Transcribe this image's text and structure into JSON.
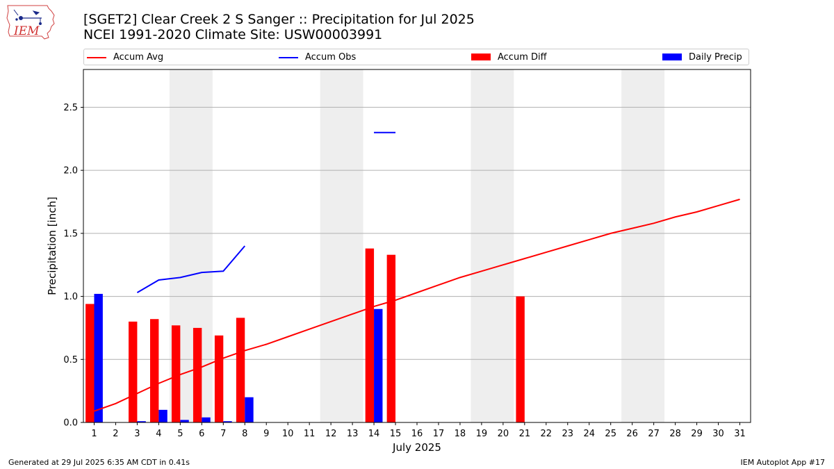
{
  "header": {
    "title_line1": "[SGET2] Clear Creek 2 S Sanger :: Precipitation for Jul 2025",
    "title_line2": "NCEI 1991-2020 Climate Site: USW00003991"
  },
  "logo": {
    "text": "IEM"
  },
  "footer": {
    "left": "Generated at 29 Jul 2025 6:35 AM CDT in 0.41s",
    "right": "IEM Autoplot App #17"
  },
  "legend": {
    "accum_avg": "Accum Avg",
    "accum_obs": "Accum Obs",
    "accum_diff": "Accum Diff",
    "daily_precip": "Daily Precip"
  },
  "colors": {
    "accum_avg": "#ff0000",
    "accum_obs": "#0000ff",
    "accum_diff": "#ff0000",
    "daily_precip": "#0000ff",
    "weekend_shade": "#eeeeee",
    "grid": "#b0b0b0"
  },
  "chart_data": {
    "type": "bar",
    "xlabel": "July 2025",
    "ylabel": "Precipitation [inch]",
    "xlim": [
      0.5,
      31.5
    ],
    "ylim": [
      0,
      2.8
    ],
    "yticks": [
      0.0,
      0.5,
      1.0,
      1.5,
      2.0,
      2.5
    ],
    "ytick_labels": [
      "0.0",
      "0.5",
      "1.0",
      "1.5",
      "2.0",
      "2.5"
    ],
    "grid": "horizontal",
    "legend_position": "top",
    "x": [
      1,
      2,
      3,
      4,
      5,
      6,
      7,
      8,
      9,
      10,
      11,
      12,
      13,
      14,
      15,
      16,
      17,
      18,
      19,
      20,
      21,
      22,
      23,
      24,
      25,
      26,
      27,
      28,
      29,
      30,
      31
    ],
    "x_tick_labels": [
      "1",
      "2",
      "3",
      "4",
      "5",
      "6",
      "7",
      "8",
      "9",
      "10",
      "11",
      "12",
      "13",
      "14",
      "15",
      "16",
      "17",
      "18",
      "19",
      "20",
      "21",
      "22",
      "23",
      "24",
      "25",
      "26",
      "27",
      "28",
      "29",
      "30",
      "31"
    ],
    "weekend_shading_days": [
      [
        5,
        6
      ],
      [
        12,
        13
      ],
      [
        19,
        20
      ],
      [
        26,
        27
      ]
    ],
    "series": [
      {
        "name": "Accum Avg",
        "type": "line",
        "values": [
          0.09,
          0.15,
          0.23,
          0.31,
          0.38,
          0.44,
          0.51,
          0.57,
          0.62,
          0.68,
          0.74,
          0.8,
          0.86,
          0.92,
          0.97,
          1.03,
          1.09,
          1.15,
          1.2,
          1.25,
          1.3,
          1.35,
          1.4,
          1.45,
          1.5,
          1.54,
          1.58,
          1.63,
          1.67,
          1.72,
          1.77
        ]
      },
      {
        "name": "Accum Obs",
        "type": "line",
        "values": [
          null,
          null,
          1.03,
          1.13,
          1.15,
          1.19,
          1.2,
          1.4,
          null,
          null,
          null,
          null,
          null,
          2.3,
          2.3,
          null,
          null,
          null,
          null,
          null,
          null,
          null,
          null,
          null,
          null,
          null,
          null,
          null,
          null,
          null,
          null
        ]
      },
      {
        "name": "Accum Diff",
        "type": "bar",
        "values": [
          0.94,
          null,
          0.8,
          0.82,
          0.77,
          0.75,
          0.69,
          0.83,
          null,
          null,
          null,
          null,
          null,
          1.38,
          1.33,
          null,
          null,
          null,
          null,
          null,
          1.0,
          null,
          null,
          null,
          null,
          null,
          null,
          null,
          null,
          null,
          null
        ]
      },
      {
        "name": "Daily Precip",
        "type": "bar",
        "values": [
          1.02,
          null,
          0.01,
          0.1,
          0.02,
          0.04,
          0.01,
          0.2,
          null,
          null,
          null,
          null,
          null,
          0.9,
          null,
          null,
          null,
          null,
          null,
          null,
          null,
          null,
          null,
          null,
          null,
          null,
          null,
          null,
          null,
          null,
          null
        ]
      }
    ]
  }
}
